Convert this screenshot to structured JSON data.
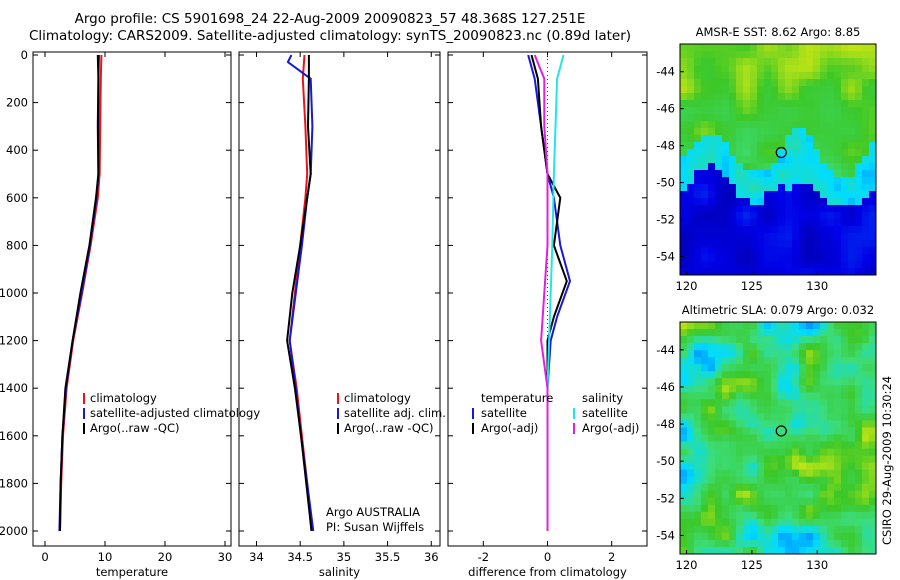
{
  "figure": {
    "title_line1": "Argo profile: CS 5901698_24 22-Aug-2009 20090823_57 48.368S 127.251E",
    "title_line2": "Climatology: CARS2009. Satellite-adjusted climatology: synTS_20090823.nc (0.89d later)",
    "credit_vertical": "CSIRO 29-Aug-2009 10:30:24",
    "agency_note_line1": "Argo AUSTRALIA",
    "agency_note_line2": "PI: Susan Wijffels"
  },
  "colors": {
    "climatology": "#e8141c",
    "satellite": "#1818d8",
    "argo": "#000000",
    "temp_satellite": "#1818d8",
    "sal_satellite": "#22e6e6",
    "sal_argo": "#e020e0"
  },
  "chart_data": [
    {
      "type": "line",
      "name": "temperature profile",
      "xlabel": "temperature",
      "ylabel": "",
      "xlim": [
        -2,
        31
      ],
      "ylim": [
        2050,
        0
      ],
      "xticks": [
        0,
        10,
        20,
        30
      ],
      "yticks": [
        0,
        200,
        400,
        600,
        800,
        1000,
        1200,
        1400,
        1600,
        1800,
        2000
      ],
      "legend": [
        "climatology",
        "satellite-adjusted climatology",
        "Argo(..raw -QC)"
      ],
      "legend_position": "lower-right",
      "series": [
        {
          "name": "climatology",
          "color_key": "climatology",
          "points": [
            [
              9.4,
              0
            ],
            [
              9.3,
              100
            ],
            [
              9.2,
              300
            ],
            [
              9.1,
              500
            ],
            [
              8.8,
              600
            ],
            [
              7.6,
              800
            ],
            [
              6.2,
              1000
            ],
            [
              4.7,
              1200
            ],
            [
              3.6,
              1400
            ],
            [
              3.0,
              1600
            ],
            [
              2.7,
              1800
            ],
            [
              2.5,
              2000
            ]
          ]
        },
        {
          "name": "satellite-adjusted climatology",
          "color_key": "satellite",
          "points": [
            [
              9.0,
              0
            ],
            [
              8.9,
              100
            ],
            [
              8.9,
              300
            ],
            [
              8.9,
              500
            ],
            [
              8.6,
              600
            ],
            [
              7.5,
              800
            ],
            [
              6.1,
              1000
            ],
            [
              4.6,
              1200
            ],
            [
              3.5,
              1400
            ],
            [
              2.9,
              1600
            ],
            [
              2.6,
              1800
            ],
            [
              2.4,
              2000
            ]
          ]
        },
        {
          "name": "Argo(..raw -QC)",
          "color_key": "argo",
          "points": [
            [
              8.8,
              0
            ],
            [
              8.9,
              100
            ],
            [
              8.8,
              300
            ],
            [
              8.9,
              500
            ],
            [
              8.5,
              600
            ],
            [
              7.4,
              800
            ],
            [
              5.9,
              1000
            ],
            [
              4.6,
              1200
            ],
            [
              3.4,
              1400
            ],
            [
              2.9,
              1600
            ],
            [
              2.6,
              1800
            ],
            [
              2.5,
              2000
            ]
          ]
        }
      ]
    },
    {
      "type": "line",
      "name": "salinity profile",
      "xlabel": "salinity",
      "ylabel": "",
      "xlim": [
        33.8,
        36.1
      ],
      "ylim": [
        2050,
        0
      ],
      "xticks": [
        34,
        34.5,
        35,
        35.5,
        36
      ],
      "xticklabels": [
        "34",
        "34.5",
        "35",
        "35.5",
        "36"
      ],
      "legend": [
        "climatology",
        "satellite adj. clim.",
        "Argo(..raw -QC)"
      ],
      "legend_position": "lower-right",
      "series": [
        {
          "name": "climatology",
          "color_key": "climatology",
          "points": [
            [
              34.55,
              0
            ],
            [
              34.53,
              100
            ],
            [
              34.56,
              300
            ],
            [
              34.58,
              500
            ],
            [
              34.56,
              600
            ],
            [
              34.5,
              800
            ],
            [
              34.44,
              1000
            ],
            [
              34.38,
              1200
            ],
            [
              34.46,
              1400
            ],
            [
              34.52,
              1600
            ],
            [
              34.58,
              1800
            ],
            [
              34.63,
              2000
            ]
          ]
        },
        {
          "name": "satellite adj. clim.",
          "color_key": "satellite",
          "points": [
            [
              34.4,
              0
            ],
            [
              34.36,
              30
            ],
            [
              34.62,
              100
            ],
            [
              34.64,
              300
            ],
            [
              34.62,
              500
            ],
            [
              34.58,
              600
            ],
            [
              34.52,
              800
            ],
            [
              34.45,
              1000
            ],
            [
              34.38,
              1200
            ],
            [
              34.45,
              1400
            ],
            [
              34.51,
              1600
            ],
            [
              34.58,
              1800
            ],
            [
              34.65,
              2000
            ]
          ]
        },
        {
          "name": "Argo(..raw -QC)",
          "color_key": "argo",
          "points": [
            [
              34.6,
              0
            ],
            [
              34.6,
              100
            ],
            [
              34.59,
              300
            ],
            [
              34.62,
              500
            ],
            [
              34.58,
              600
            ],
            [
              34.5,
              800
            ],
            [
              34.41,
              1000
            ],
            [
              34.35,
              1200
            ],
            [
              34.44,
              1400
            ],
            [
              34.51,
              1600
            ],
            [
              34.57,
              1800
            ],
            [
              34.63,
              2000
            ]
          ]
        }
      ]
    },
    {
      "type": "line",
      "name": "difference from climatology",
      "xlabel": "difference from climatology",
      "ylabel": "",
      "xlim": [
        -3.1,
        3.1
      ],
      "ylim": [
        2050,
        0
      ],
      "xticks": [
        -2,
        0,
        2
      ],
      "legend_groups": [
        {
          "heading": "temperature",
          "entries": [
            "satellite",
            "Argo(-adj)"
          ]
        },
        {
          "heading": "salinity",
          "entries": [
            "satellite",
            "Argo(-adj)"
          ]
        }
      ],
      "legend_position": "lower",
      "series": [
        {
          "name": "temperature satellite",
          "color_key": "temp_satellite",
          "points": [
            [
              -0.6,
              0
            ],
            [
              -0.4,
              100
            ],
            [
              -0.2,
              300
            ],
            [
              0.0,
              500
            ],
            [
              0.2,
              600
            ],
            [
              0.4,
              800
            ],
            [
              0.7,
              950
            ],
            [
              0.3,
              1100
            ],
            [
              0.1,
              1200
            ],
            [
              0.0,
              1400
            ],
            [
              0.0,
              1600
            ],
            [
              0.0,
              1800
            ],
            [
              0.0,
              2000
            ]
          ]
        },
        {
          "name": "temperature Argo(-adj)",
          "color_key": "argo",
          "points": [
            [
              -0.5,
              0
            ],
            [
              -0.3,
              100
            ],
            [
              -0.2,
              300
            ],
            [
              0.0,
              500
            ],
            [
              0.4,
              600
            ],
            [
              0.2,
              800
            ],
            [
              0.6,
              950
            ],
            [
              0.2,
              1100
            ],
            [
              0.0,
              1200
            ],
            [
              0.0,
              1400
            ],
            [
              0.0,
              1600
            ],
            [
              0.0,
              1800
            ],
            [
              0.0,
              2000
            ]
          ]
        },
        {
          "name": "salinity satellite",
          "color_key": "sal_satellite",
          "points": [
            [
              0.5,
              0
            ],
            [
              0.3,
              100
            ],
            [
              0.25,
              300
            ],
            [
              0.2,
              500
            ],
            [
              0.15,
              800
            ],
            [
              0.1,
              1000
            ],
            [
              0.0,
              1400
            ],
            [
              0.0,
              1600
            ],
            [
              0.0,
              1800
            ],
            [
              0.0,
              2000
            ]
          ]
        },
        {
          "name": "salinity Argo(-adj)",
          "color_key": "sal_argo",
          "points": [
            [
              -0.4,
              0
            ],
            [
              -0.1,
              100
            ],
            [
              -0.1,
              300
            ],
            [
              0.0,
              500
            ],
            [
              0.0,
              800
            ],
            [
              -0.1,
              1000
            ],
            [
              -0.2,
              1200
            ],
            [
              0.0,
              1400
            ],
            [
              0.0,
              1600
            ],
            [
              0.0,
              1800
            ],
            [
              0.0,
              2000
            ]
          ]
        }
      ]
    },
    {
      "type": "heatmap",
      "name": "sst map",
      "title": "AMSR-E SST: 8.62 Argo: 8.85",
      "xlim": [
        119.5,
        134.5
      ],
      "ylim": [
        -55,
        -42.5
      ],
      "xticks": [
        120,
        125,
        130
      ],
      "yticks": [
        -44,
        -46,
        -48,
        -50,
        -52,
        -54
      ],
      "marker": {
        "lon": 127.25,
        "lat": -48.37
      }
    },
    {
      "type": "heatmap",
      "name": "sla map",
      "title": "Altimetric SLA: 0.079 Argo: 0.032",
      "xlim": [
        119.5,
        134.5
      ],
      "ylim": [
        -55,
        -42.5
      ],
      "xticks": [
        120,
        125,
        130
      ],
      "yticks": [
        -44,
        -46,
        -48,
        -50,
        -52,
        -54
      ],
      "marker": {
        "lon": 127.25,
        "lat": -48.37
      }
    }
  ]
}
